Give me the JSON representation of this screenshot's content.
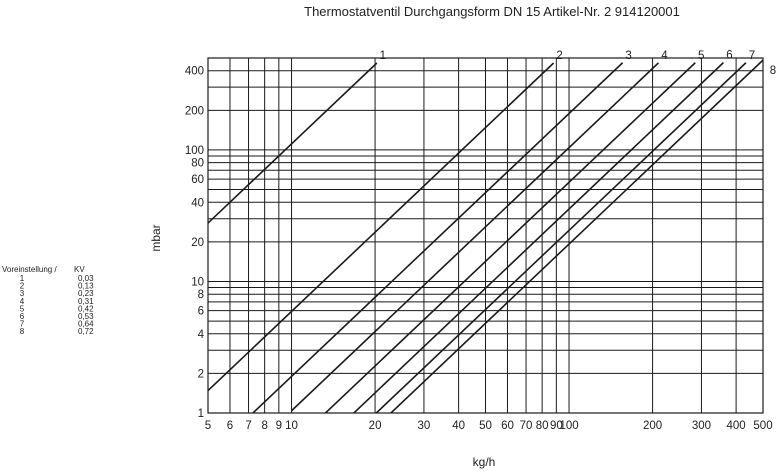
{
  "chart_data": {
    "type": "line",
    "title": "Thermostatventil Durchgangsform DN 15 Artikel-Nr. 2 914120001",
    "xlabel": "kg/h",
    "ylabel": "mbar",
    "x_scale": "log",
    "y_scale": "log",
    "xlim": [
      5,
      500
    ],
    "ylim": [
      1,
      500
    ],
    "x_ticks": [
      "5",
      "6",
      "7",
      "8",
      "9",
      "10",
      "20",
      "30",
      "40",
      "50",
      "60",
      "70",
      "80",
      "90",
      "100",
      "200",
      "300",
      "400",
      "500"
    ],
    "y_ticks": [
      "1",
      "2",
      "4",
      "6",
      "8",
      "10",
      "20",
      "40",
      "60",
      "80",
      "100",
      "200",
      "400"
    ],
    "grid": true,
    "legend": {
      "header_setting": "Voreinstellung /",
      "header_kv": "KV",
      "settings": [
        "1",
        "2",
        "3",
        "4",
        "5",
        "6",
        "7",
        "8"
      ],
      "kv_text": [
        "0,03",
        "0,13",
        "0,23",
        "0,31",
        "0,42",
        "0,53",
        "0,64",
        "0,72"
      ]
    },
    "series": [
      {
        "name": "1",
        "kv": 0.03,
        "x": [
          5,
          20.3
        ],
        "y": [
          27.8,
          458
        ]
      },
      {
        "name": "2",
        "kv": 0.13,
        "x": [
          5,
          88
        ],
        "y": [
          1.48,
          458
        ]
      },
      {
        "name": "3",
        "kv": 0.23,
        "x": [
          7,
          156
        ],
        "y": [
          0.93,
          460
        ]
      },
      {
        "name": "4",
        "kv": 0.31,
        "x": [
          10,
          210
        ],
        "y": [
          1.04,
          459
        ]
      },
      {
        "name": "5",
        "kv": 0.42,
        "x": [
          12.5,
          285
        ],
        "y": [
          0.89,
          460
        ]
      },
      {
        "name": "6",
        "kv": 0.53,
        "x": [
          16,
          360
        ],
        "y": [
          0.91,
          461
        ]
      },
      {
        "name": "7",
        "kv": 0.64,
        "x": [
          20,
          434
        ],
        "y": [
          0.98,
          460
        ]
      },
      {
        "name": "8",
        "kv": 0.72,
        "x": [
          22,
          500
        ],
        "y": [
          0.93,
          482
        ]
      }
    ]
  }
}
